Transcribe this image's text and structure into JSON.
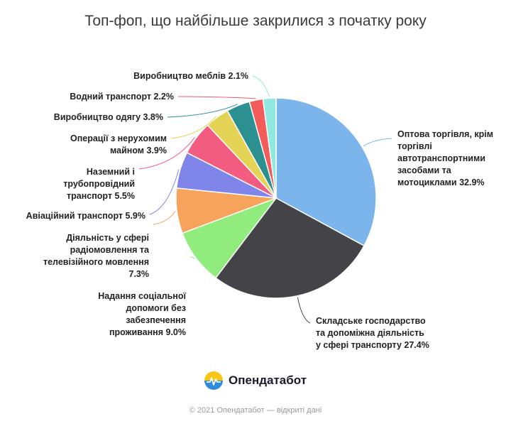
{
  "title": "Топ-фоп, що найбільше закрилися з початку року",
  "brand": {
    "name": "Опендатабот",
    "icon": "opendatabot-logo-icon"
  },
  "footer": "© 2021 Опендатабот — відкриті дані",
  "chart_data": {
    "type": "pie",
    "title": "Топ-фоп, що найбільше закрилися з початку року",
    "unit": "%",
    "slices": [
      {
        "label": "Оптова торгівля, крім торгівлі автотранспортними засобами та мотоциклами",
        "value": 32.9,
        "color": "#7cb4ec",
        "lines": [
          "Оптова торгівля, крім",
          "торгівлі",
          "автотранспортними",
          "засобами та",
          "мотоциклами 32.9%"
        ]
      },
      {
        "label": "Складське господарство та допоміжна діяльність у сфері транспорту",
        "value": 27.4,
        "color": "#434348",
        "lines": [
          "Складське господарство",
          "та допоміжна діяльність",
          "у сфері транспорту 27.4%"
        ]
      },
      {
        "label": "Надання соціальної допомоги без забезпечення проживання",
        "value": 9.0,
        "color": "#90ed7d",
        "lines": [
          "Надання соціальної",
          "допомоги без",
          "забезпечення",
          "проживання 9.0%"
        ]
      },
      {
        "label": "Діяльність у сфері радіомовлення та телевізійного мовлення",
        "value": 7.3,
        "color": "#f7a35c",
        "lines": [
          "Діяльність у сфері",
          "радіомовлення та",
          "телевізійного мовлення",
          "7.3%"
        ]
      },
      {
        "label": "Авіаційний транспорт",
        "value": 5.9,
        "color": "#8085e9",
        "lines": [
          "Авіаційний транспорт 5.9%"
        ]
      },
      {
        "label": "Наземний і трубопровідний транспорт",
        "value": 5.5,
        "color": "#f15c80",
        "lines": [
          "Наземний і",
          "трубопровідний",
          "транспорт 5.5%"
        ]
      },
      {
        "label": "Операції з нерухомим майном",
        "value": 3.9,
        "color": "#e4d354",
        "lines": [
          "Операції з нерухомим",
          "майном 3.9%"
        ]
      },
      {
        "label": "Виробництво одягу",
        "value": 3.8,
        "color": "#2b908f",
        "lines": [
          "Виробництво одягу 3.8%"
        ]
      },
      {
        "label": "Водний транспорт",
        "value": 2.2,
        "color": "#f45b5b",
        "lines": [
          "Водний транспорт 2.2%"
        ]
      },
      {
        "label": "Виробництво меблів",
        "value": 2.1,
        "color": "#91e8e1",
        "lines": [
          "Виробництво меблів 2.1%"
        ]
      }
    ],
    "start_angle_deg": 0,
    "direction": "clockwise",
    "legend": "none",
    "data_labels": "outside-with-connectors"
  }
}
